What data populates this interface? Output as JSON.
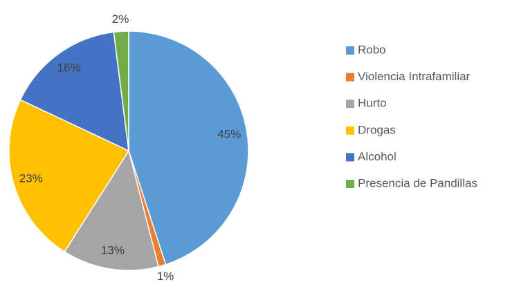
{
  "chart_data": {
    "type": "pie",
    "categories": [
      "Robo",
      "Violencia Intrafamiliar",
      "Hurto",
      "Drogas",
      "Alcohol",
      "Presencia de Pandillas"
    ],
    "values": [
      45,
      1,
      13,
      23,
      16,
      2
    ],
    "value_labels": [
      "45%",
      "1%",
      "13%",
      "23%",
      "16%",
      "2%"
    ],
    "colors": [
      "#5b9bd5",
      "#ed7d31",
      "#a5a5a5",
      "#ffc000",
      "#4472c4",
      "#70ad47"
    ],
    "legend": "right"
  }
}
